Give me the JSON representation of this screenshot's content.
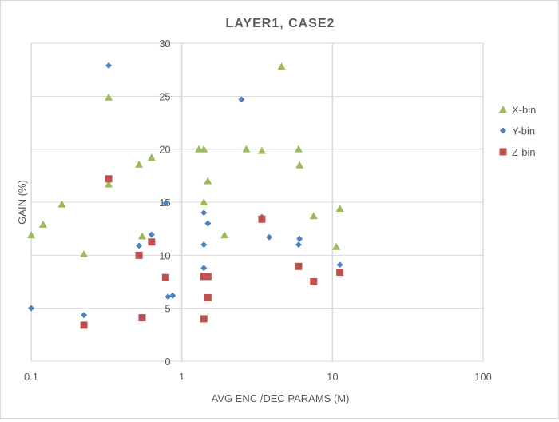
{
  "chart_data": {
    "type": "scatter",
    "title": "LAYER1, CASE2",
    "xlabel": "AVG ENC /DEC PARAMS (M)",
    "ylabel": "GAIN (%)",
    "x_scale": "log",
    "xlim": [
      0.1,
      100
    ],
    "ylim": [
      0,
      30
    ],
    "x_ticks": [
      0.1,
      1,
      10,
      100
    ],
    "x_tick_labels": [
      "0.1",
      "1",
      "10",
      "100"
    ],
    "y_ticks": [
      0,
      5,
      10,
      15,
      20,
      25,
      30
    ],
    "y_tick_labels": [
      "0",
      "5",
      "10",
      "15",
      "20",
      "25",
      "30"
    ],
    "grid": true,
    "legend_position": "right",
    "series": [
      {
        "name": "X-bin",
        "marker": "triangle",
        "color": "#9BBB59",
        "points": [
          [
            0.1,
            11.9
          ],
          [
            0.12,
            12.9
          ],
          [
            0.16,
            14.8
          ],
          [
            0.224,
            10.1
          ],
          [
            0.327,
            24.9
          ],
          [
            0.327,
            16.7
          ],
          [
            0.52,
            18.55
          ],
          [
            0.545,
            11.8
          ],
          [
            0.63,
            19.2
          ],
          [
            1.3,
            20.0
          ],
          [
            1.4,
            20.0
          ],
          [
            2.68,
            20.0
          ],
          [
            3.4,
            19.85
          ],
          [
            5.96,
            20.0
          ],
          [
            6.05,
            18.5
          ],
          [
            4.59,
            27.8
          ],
          [
            1.49,
            17.0
          ],
          [
            1.4,
            15.0
          ],
          [
            1.92,
            11.9
          ],
          [
            7.5,
            13.7
          ],
          [
            11.2,
            14.4
          ],
          [
            10.6,
            10.8
          ]
        ]
      },
      {
        "name": "Y-bin",
        "marker": "diamond",
        "color": "#4F81BD",
        "points": [
          [
            0.1,
            5.0
          ],
          [
            0.224,
            4.35
          ],
          [
            0.327,
            27.9
          ],
          [
            0.52,
            10.9
          ],
          [
            0.63,
            11.95
          ],
          [
            0.78,
            14.9
          ],
          [
            0.81,
            6.1
          ],
          [
            0.87,
            6.2
          ],
          [
            2.49,
            24.7
          ],
          [
            1.4,
            14.0
          ],
          [
            1.49,
            13.0
          ],
          [
            1.4,
            11.0
          ],
          [
            1.4,
            8.8
          ],
          [
            3.4,
            13.6
          ],
          [
            3.8,
            11.7
          ],
          [
            6.05,
            11.55
          ],
          [
            5.96,
            11.0
          ],
          [
            11.2,
            9.1
          ]
        ]
      },
      {
        "name": "Z-bin",
        "marker": "square",
        "color": "#C0504D",
        "points": [
          [
            0.224,
            3.4
          ],
          [
            0.327,
            17.2
          ],
          [
            0.52,
            10.0
          ],
          [
            0.63,
            11.25
          ],
          [
            0.545,
            4.1
          ],
          [
            0.78,
            7.9
          ],
          [
            1.4,
            8.0
          ],
          [
            1.49,
            8.0
          ],
          [
            1.49,
            6.0
          ],
          [
            1.4,
            4.0
          ],
          [
            3.4,
            13.4
          ],
          [
            5.96,
            8.95
          ],
          [
            7.5,
            7.5
          ],
          [
            11.2,
            8.4
          ]
        ]
      }
    ]
  }
}
